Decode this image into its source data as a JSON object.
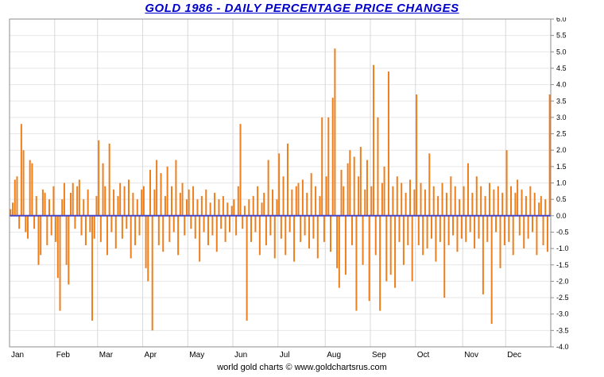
{
  "header": {
    "title": "GOLD 1986 - DAILY PERCENTAGE PRICE CHANGES"
  },
  "footer": {
    "text": "world gold charts © www.goldchartsrus.com"
  },
  "colors": {
    "title": "#0000CC",
    "bar": "#EE7F1D",
    "zero_line": "#4444CC",
    "grid": "#E7E7E7",
    "month_grid": "#D8D8D8",
    "border": "#8C8C8C",
    "text": "#000000",
    "background": "#FFFFFF"
  },
  "chart_data": {
    "type": "bar",
    "title": "GOLD 1986 - DAILY PERCENTAGE PRICE CHANGES",
    "xlabel": "",
    "ylabel": "",
    "ylim": [
      -4.0,
      6.0
    ],
    "ytick_step": 0.5,
    "ytick_labels": [
      "6.0",
      "5.5",
      "5.0",
      "4.5",
      "4.0",
      "3.5",
      "3.0",
      "2.5",
      "2.0",
      "1.5",
      "1.0",
      "0.5",
      "0.0",
      "-0.5",
      "-1.0",
      "-1.5",
      "-2.0",
      "-2.5",
      "-3.0",
      "-3.5",
      "-4.0"
    ],
    "x_months": [
      "Jan",
      "Feb",
      "Mar",
      "Apr",
      "May",
      "Jun",
      "Jul",
      "Aug",
      "Sep",
      "Oct",
      "Nov",
      "Dec"
    ],
    "month_start_index": [
      0,
      21,
      41,
      62,
      83,
      104,
      125,
      147,
      168,
      189,
      211,
      231
    ],
    "n_points": 252,
    "grid": true,
    "legend": "none",
    "zero_line": 0.0,
    "values": [
      0.2,
      0.4,
      1.1,
      1.2,
      -0.4,
      2.8,
      2.0,
      -0.5,
      -0.7,
      1.7,
      1.6,
      -0.4,
      0.6,
      -1.5,
      -1.2,
      0.8,
      0.7,
      -0.9,
      0.5,
      -0.6,
      0.9,
      -0.8,
      -1.9,
      -2.9,
      0.5,
      1.0,
      -1.5,
      -2.1,
      0.7,
      1.0,
      -0.4,
      0.9,
      1.1,
      -0.6,
      0.5,
      -0.9,
      0.8,
      -0.5,
      -3.2,
      -0.7,
      0.6,
      2.3,
      -0.8,
      1.6,
      0.9,
      -1.2,
      2.2,
      -0.5,
      0.8,
      -1.0,
      0.6,
      1.0,
      -0.7,
      0.9,
      -0.4,
      1.1,
      -1.3,
      0.7,
      -0.9,
      0.5,
      -0.6,
      0.8,
      0.9,
      -1.6,
      -2.0,
      1.4,
      -3.5,
      0.8,
      1.7,
      -0.9,
      1.3,
      -1.1,
      0.6,
      1.5,
      -0.8,
      0.9,
      -0.5,
      1.7,
      -1.2,
      0.7,
      1.0,
      -0.6,
      0.5,
      0.8,
      -0.4,
      0.9,
      -0.7,
      0.5,
      -1.4,
      0.6,
      -0.5,
      0.8,
      -0.9,
      0.4,
      -0.6,
      0.7,
      -1.1,
      0.5,
      -0.4,
      0.6,
      -0.8,
      0.4,
      -0.5,
      0.3,
      0.5,
      -0.6,
      0.9,
      2.8,
      -0.4,
      0.3,
      -3.2,
      0.5,
      -0.8,
      0.6,
      -0.5,
      0.9,
      -1.2,
      0.4,
      0.7,
      -0.9,
      1.7,
      -0.6,
      0.8,
      -1.3,
      0.5,
      1.9,
      -0.7,
      1.2,
      -1.2,
      2.2,
      -0.5,
      0.8,
      -1.4,
      0.9,
      1.0,
      -0.8,
      1.1,
      -0.6,
      0.7,
      -1.0,
      1.3,
      -0.7,
      0.9,
      -1.3,
      0.6,
      3.0,
      -0.8,
      1.2,
      3.0,
      -1.1,
      3.6,
      5.1,
      -1.6,
      -2.2,
      1.4,
      0.9,
      -1.8,
      1.6,
      2.0,
      -0.9,
      1.8,
      -2.9,
      1.2,
      2.1,
      -1.5,
      0.8,
      1.7,
      -2.6,
      0.9,
      4.6,
      -1.2,
      3.0,
      -2.9,
      1.0,
      1.5,
      -2.0,
      4.4,
      -1.8,
      0.9,
      -2.2,
      1.2,
      -0.8,
      1.0,
      -1.5,
      0.7,
      -0.9,
      1.1,
      -2.0,
      0.8,
      3.7,
      -0.9,
      1.0,
      -1.2,
      0.8,
      -1.0,
      1.9,
      -0.7,
      0.9,
      -1.4,
      0.6,
      -0.8,
      1.0,
      -2.5,
      0.7,
      -0.9,
      1.2,
      -0.6,
      0.9,
      -1.1,
      0.5,
      -0.7,
      0.9,
      -0.8,
      1.6,
      -0.5,
      0.7,
      -1.0,
      1.2,
      -0.7,
      0.9,
      -2.4,
      0.6,
      -0.8,
      1.0,
      -3.3,
      0.8,
      -0.5,
      0.9,
      -1.6,
      0.7,
      -0.9,
      2.0,
      -0.8,
      0.9,
      -1.2,
      0.7,
      1.1,
      -0.6,
      0.8,
      -1.0,
      0.6,
      -0.7,
      0.9,
      -0.5,
      0.7,
      -1.2,
      0.4,
      0.6,
      -0.9,
      0.5,
      -1.1,
      3.7
    ]
  }
}
